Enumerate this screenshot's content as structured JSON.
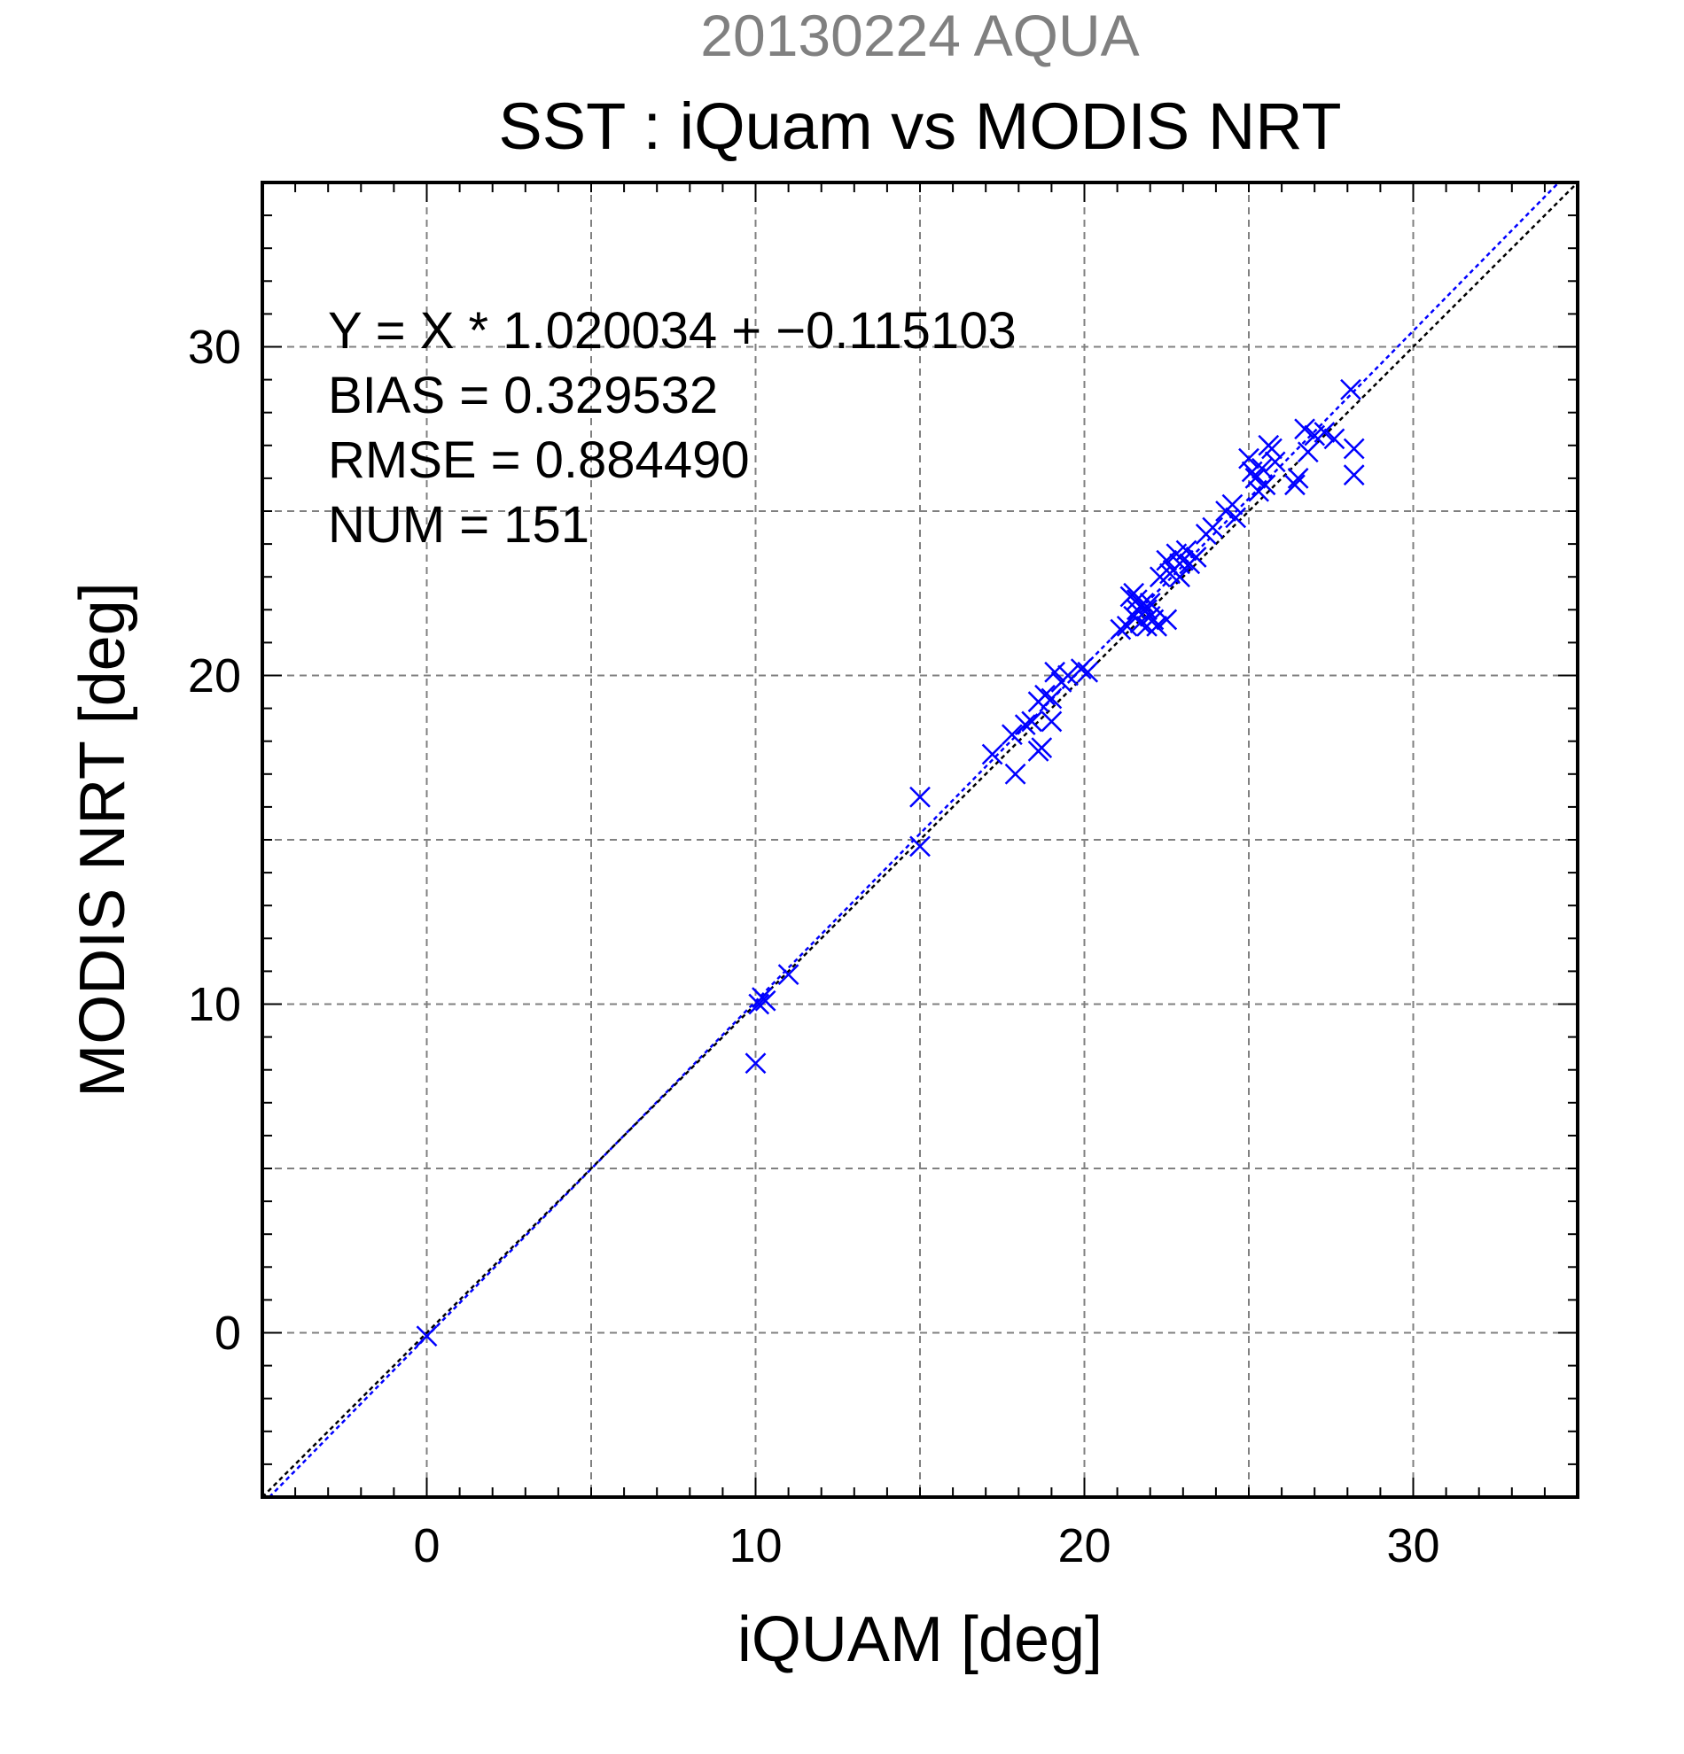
{
  "chart_data": {
    "type": "scatter",
    "supertitle": "20130224 AQUA",
    "title": "SST : iQuam vs MODIS NRT",
    "xlabel": "iQUAM [deg]",
    "ylabel": "MODIS NRT [deg]",
    "xlim": [
      -5,
      35
    ],
    "ylim": [
      -5,
      35
    ],
    "xticks": [
      0,
      10,
      20,
      30
    ],
    "yticks": [
      0,
      10,
      20,
      30
    ],
    "xtick_labels": [
      "0",
      "10",
      "20",
      "30"
    ],
    "ytick_labels": [
      "0",
      "10",
      "20",
      "30"
    ],
    "grid": true,
    "marker": "x",
    "marker_color": "#0000ff",
    "stats": [
      "Y = X * 1.020034 + −0.115103",
      "BIAS = 0.329532",
      "RMSE = 0.884490",
      "NUM = 151"
    ],
    "lines": [
      {
        "kind": "fit",
        "slope": 1.020034,
        "intercept": -0.115103,
        "color": "#0000ff",
        "style": "dotted"
      },
      {
        "kind": "identity",
        "slope": 1,
        "intercept": 0,
        "color": "#000000",
        "style": "dotted"
      }
    ],
    "points": [
      [
        0.0,
        -0.1
      ],
      [
        10.0,
        8.2
      ],
      [
        10.1,
        10.0
      ],
      [
        10.2,
        10.2
      ],
      [
        10.3,
        10.1
      ],
      [
        11.0,
        10.9
      ],
      [
        15.0,
        16.3
      ],
      [
        15.0,
        14.8
      ],
      [
        17.2,
        17.6
      ],
      [
        17.8,
        18.2
      ],
      [
        17.9,
        17.0
      ],
      [
        18.2,
        18.5
      ],
      [
        18.4,
        18.6
      ],
      [
        18.6,
        17.7
      ],
      [
        18.7,
        17.8
      ],
      [
        18.6,
        19.2
      ],
      [
        18.8,
        19.4
      ],
      [
        19.0,
        18.6
      ],
      [
        19.0,
        19.3
      ],
      [
        19.1,
        20.1
      ],
      [
        19.3,
        19.8
      ],
      [
        19.5,
        20.0
      ],
      [
        19.9,
        20.2
      ],
      [
        20.1,
        20.1
      ],
      [
        21.1,
        21.4
      ],
      [
        21.3,
        21.5
      ],
      [
        21.4,
        22.4
      ],
      [
        21.5,
        22.5
      ],
      [
        21.5,
        21.8
      ],
      [
        21.6,
        22.0
      ],
      [
        21.7,
        22.1
      ],
      [
        21.7,
        21.6
      ],
      [
        21.8,
        22.2
      ],
      [
        21.9,
        22.0
      ],
      [
        21.9,
        21.5
      ],
      [
        22.0,
        21.8
      ],
      [
        22.1,
        21.7
      ],
      [
        22.2,
        21.5
      ],
      [
        21.6,
        22.3
      ],
      [
        22.0,
        22.2
      ],
      [
        22.3,
        23.0
      ],
      [
        22.5,
        21.7
      ],
      [
        22.5,
        23.5
      ],
      [
        22.6,
        23.1
      ],
      [
        22.7,
        23.2
      ],
      [
        22.8,
        23.7
      ],
      [
        22.9,
        23.4
      ],
      [
        22.9,
        23.0
      ],
      [
        23.0,
        23.5
      ],
      [
        23.1,
        23.8
      ],
      [
        23.2,
        23.4
      ],
      [
        23.4,
        23.6
      ],
      [
        23.7,
        24.3
      ],
      [
        23.9,
        24.5
      ],
      [
        24.3,
        25.0
      ],
      [
        24.5,
        25.2
      ],
      [
        24.6,
        24.8
      ],
      [
        25.0,
        26.6
      ],
      [
        25.1,
        26.2
      ],
      [
        25.2,
        26.0
      ],
      [
        25.3,
        25.6
      ],
      [
        25.4,
        26.3
      ],
      [
        25.5,
        25.8
      ],
      [
        25.6,
        27.0
      ],
      [
        25.7,
        26.9
      ],
      [
        25.8,
        26.5
      ],
      [
        26.4,
        25.8
      ],
      [
        26.5,
        26.0
      ],
      [
        26.7,
        27.5
      ],
      [
        26.8,
        26.8
      ],
      [
        27.0,
        27.3
      ],
      [
        27.3,
        27.4
      ],
      [
        27.6,
        27.2
      ],
      [
        28.1,
        28.7
      ],
      [
        28.2,
        26.9
      ],
      [
        28.2,
        26.1
      ]
    ]
  }
}
